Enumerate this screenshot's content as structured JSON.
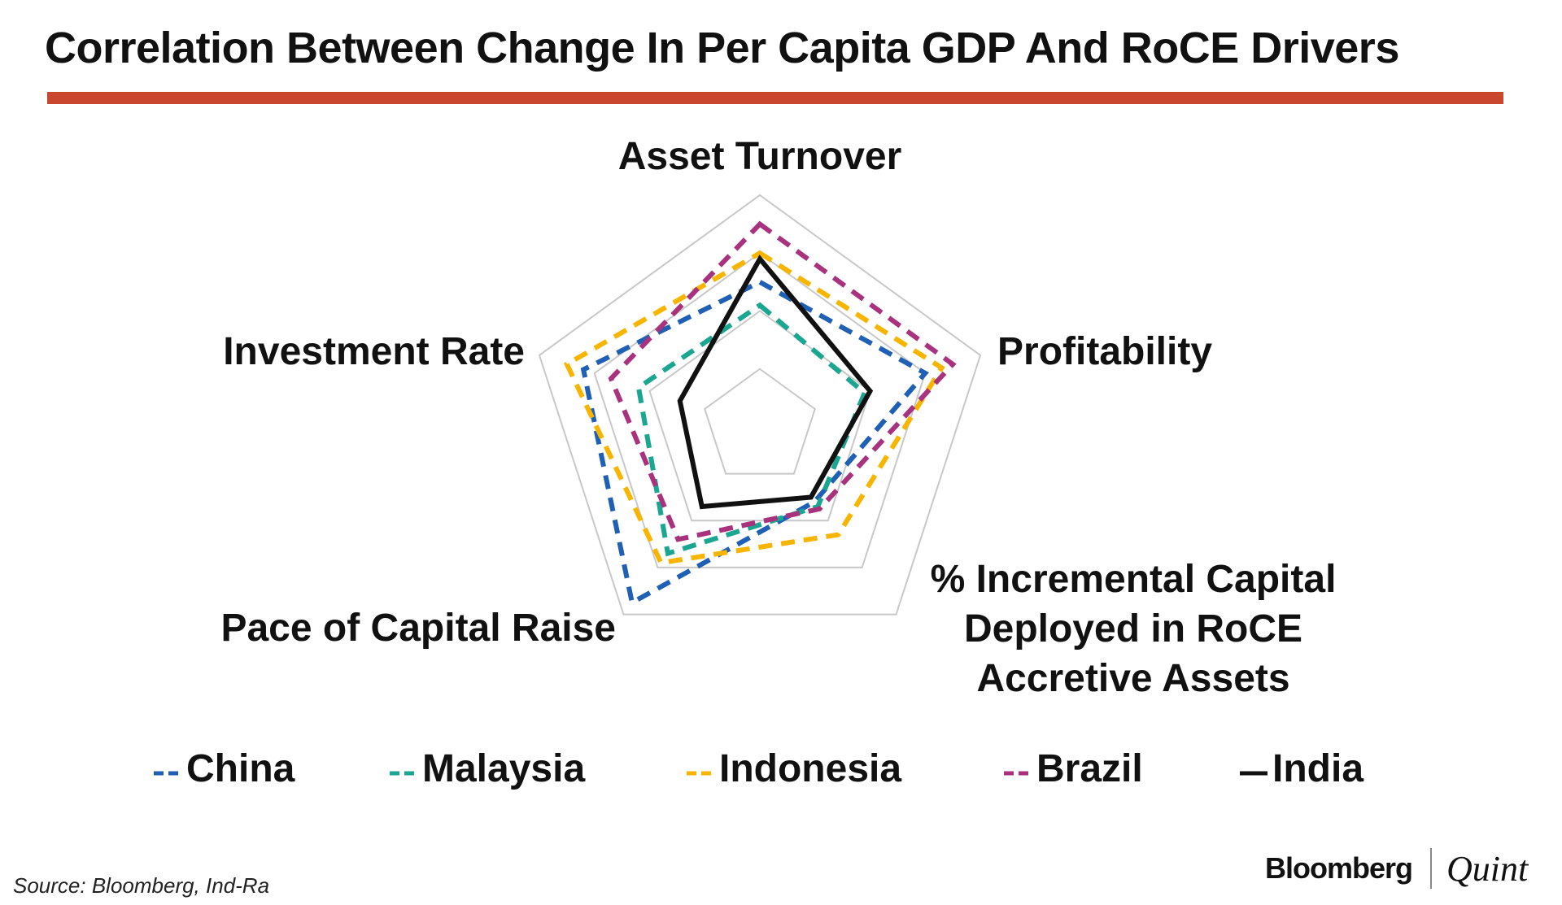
{
  "title": "Correlation Between Change In Per Capita GDP And RoCE Drivers",
  "source": "Source: Bloomberg, Ind-Ra",
  "brand": {
    "primary": "Bloomberg",
    "secondary": "Quint"
  },
  "chart_data": {
    "type": "radar",
    "axes": [
      "Asset Turnover",
      "Profitability",
      "% Incremental Capital Deployed in RoCE Accretive Assets",
      "Pace of Capital Raise",
      "Investment Rate"
    ],
    "axis_label_lines": [
      [
        "Asset Turnover"
      ],
      [
        "Profitability"
      ],
      [
        "% Incremental Capital",
        "Deployed in RoCE",
        "Accretive Assets"
      ],
      [
        "Pace of Capital Raise"
      ],
      [
        "Investment Rate"
      ]
    ],
    "range": [
      0,
      4
    ],
    "grid_levels": [
      1,
      2,
      3,
      4
    ],
    "series": [
      {
        "name": "China",
        "color": "#1f5fb4",
        "dash": "dashed",
        "values": [
          2.5,
          3.0,
          1.6,
          3.75,
          3.2
        ]
      },
      {
        "name": "Malaysia",
        "color": "#1aa690",
        "dash": "dashed",
        "values": [
          2.1,
          1.9,
          1.7,
          2.7,
          2.2
        ]
      },
      {
        "name": "Indonesia",
        "color": "#f7b500",
        "dash": "dashed",
        "values": [
          3.0,
          3.3,
          2.3,
          2.9,
          3.5
        ]
      },
      {
        "name": "Brazil",
        "color": "#a8327d",
        "dash": "dashed",
        "values": [
          3.5,
          3.5,
          1.75,
          2.4,
          2.7
        ]
      },
      {
        "name": "India",
        "color": "#111111",
        "dash": "solid",
        "values": [
          2.9,
          2.0,
          1.5,
          1.7,
          1.45
        ]
      }
    ]
  }
}
